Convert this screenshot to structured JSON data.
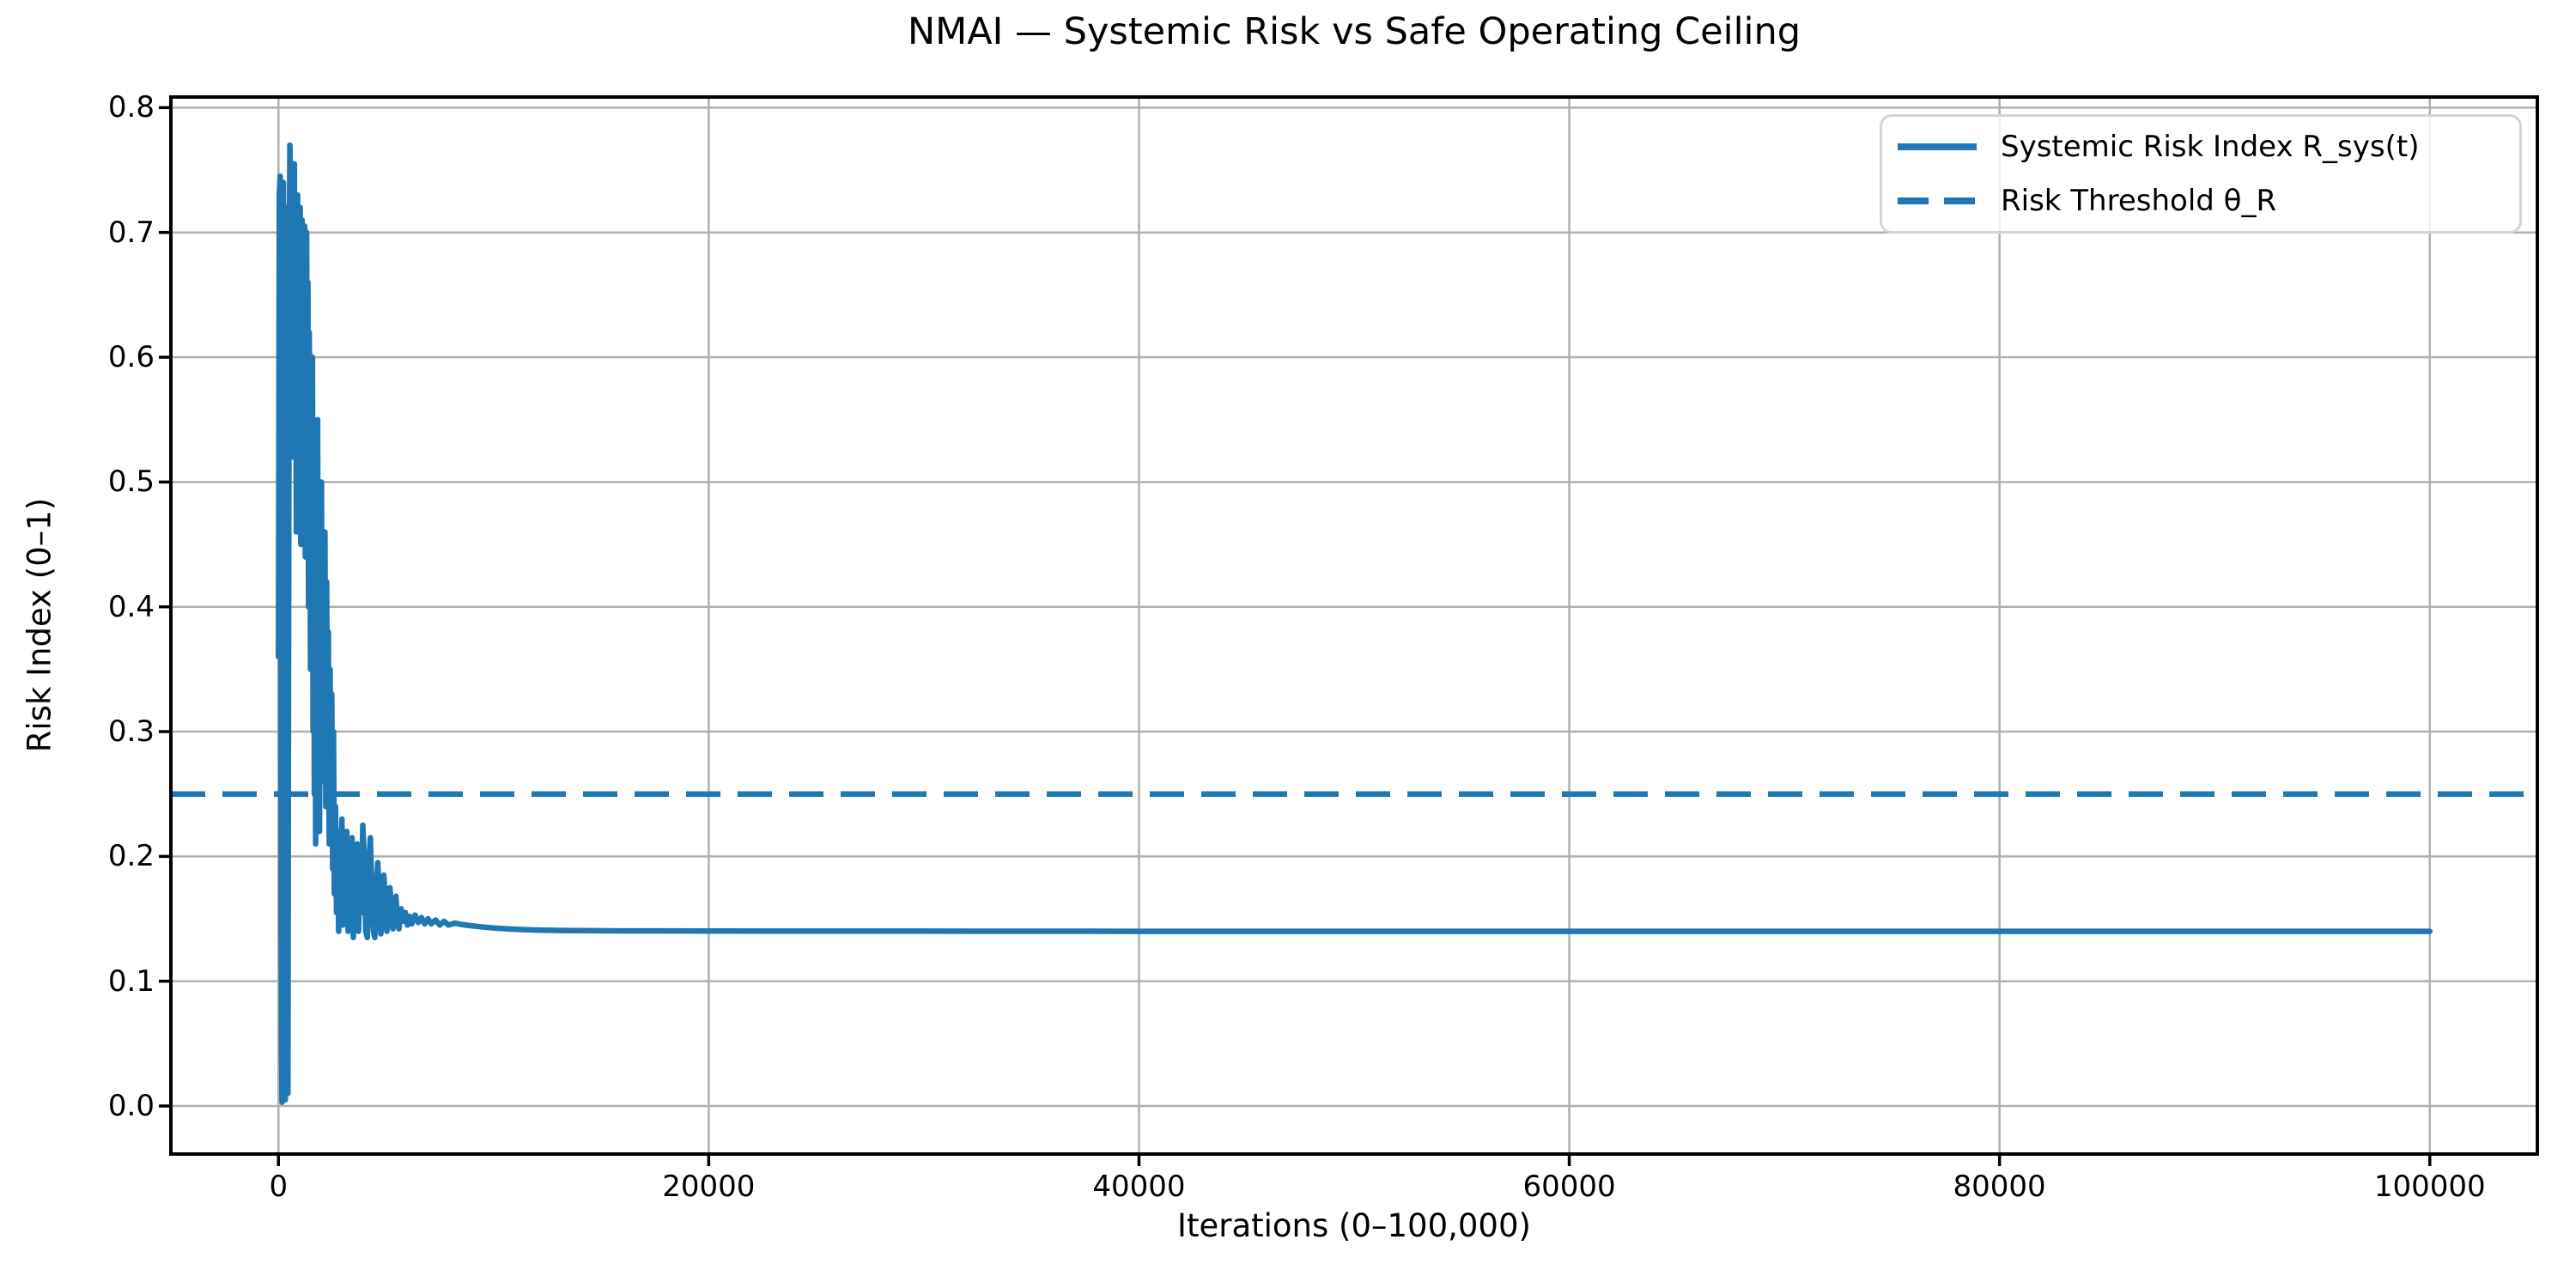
{
  "chart_data": {
    "type": "line",
    "title": "NMAI — Systemic Risk vs Safe Operating Ceiling",
    "xlabel": "Iterations (0–100,000)",
    "ylabel": "Risk Index (0–1)",
    "xlim": [
      -5000,
      105000
    ],
    "ylim": [
      -0.0385,
      0.8085
    ],
    "xticks": [
      0,
      20000,
      40000,
      60000,
      80000,
      100000
    ],
    "yticks": [
      0.0,
      0.1,
      0.2,
      0.3,
      0.4,
      0.5,
      0.6,
      0.7,
      0.8
    ],
    "grid": true,
    "legend_position": "upper right",
    "colors": {
      "line": "#1f77b4",
      "grid": "#b0b0b0",
      "spine": "#000000",
      "text": "#000000",
      "legend_border": "#d5d5d5"
    },
    "series": [
      {
        "name": "Systemic Risk Index R_sys(t)",
        "style": "solid",
        "points": [
          [
            0,
            0.36
          ],
          [
            40,
            0.73
          ],
          [
            80,
            0.745
          ],
          [
            110,
            0.36
          ],
          [
            140,
            0.05
          ],
          [
            170,
            0.003
          ],
          [
            200,
            0.55
          ],
          [
            230,
            0.74
          ],
          [
            260,
            0.62
          ],
          [
            290,
            0.3
          ],
          [
            320,
            0.005
          ],
          [
            350,
            0.48
          ],
          [
            380,
            0.72
          ],
          [
            410,
            0.55
          ],
          [
            440,
            0.01
          ],
          [
            470,
            0.35
          ],
          [
            500,
            0.65
          ],
          [
            530,
            0.77
          ],
          [
            560,
            0.735
          ],
          [
            590,
            0.56
          ],
          [
            620,
            0.7
          ],
          [
            650,
            0.74
          ],
          [
            680,
            0.52
          ],
          [
            710,
            0.68
          ],
          [
            740,
            0.755
          ],
          [
            770,
            0.58
          ],
          [
            800,
            0.71
          ],
          [
            830,
            0.46
          ],
          [
            860,
            0.67
          ],
          [
            890,
            0.73
          ],
          [
            920,
            0.5
          ],
          [
            950,
            0.7
          ],
          [
            980,
            0.61
          ],
          [
            1010,
            0.72
          ],
          [
            1040,
            0.45
          ],
          [
            1070,
            0.66
          ],
          [
            1100,
            0.71
          ],
          [
            1130,
            0.48
          ],
          [
            1160,
            0.69
          ],
          [
            1190,
            0.55
          ],
          [
            1220,
            0.705
          ],
          [
            1250,
            0.44
          ],
          [
            1280,
            0.63
          ],
          [
            1310,
            0.7
          ],
          [
            1340,
            0.52
          ],
          [
            1370,
            0.66
          ],
          [
            1400,
            0.4
          ],
          [
            1430,
            0.62
          ],
          [
            1460,
            0.55
          ],
          [
            1490,
            0.35
          ],
          [
            1520,
            0.58
          ],
          [
            1550,
            0.42
          ],
          [
            1580,
            0.6
          ],
          [
            1610,
            0.3
          ],
          [
            1640,
            0.55
          ],
          [
            1670,
            0.25
          ],
          [
            1700,
            0.52
          ],
          [
            1730,
            0.21
          ],
          [
            1760,
            0.5
          ],
          [
            1790,
            0.35
          ],
          [
            1820,
            0.55
          ],
          [
            1850,
            0.28
          ],
          [
            1880,
            0.48
          ],
          [
            1910,
            0.22
          ],
          [
            1940,
            0.45
          ],
          [
            1970,
            0.3
          ],
          [
            2000,
            0.5
          ],
          [
            2040,
            0.26
          ],
          [
            2080,
            0.44
          ],
          [
            2120,
            0.32
          ],
          [
            2160,
            0.46
          ],
          [
            2200,
            0.24
          ],
          [
            2240,
            0.42
          ],
          [
            2280,
            0.28
          ],
          [
            2320,
            0.38
          ],
          [
            2360,
            0.21
          ],
          [
            2400,
            0.35
          ],
          [
            2440,
            0.25
          ],
          [
            2480,
            0.33
          ],
          [
            2520,
            0.19
          ],
          [
            2560,
            0.3
          ],
          [
            2600,
            0.17
          ],
          [
            2650,
            0.24
          ],
          [
            2700,
            0.155
          ],
          [
            2750,
            0.22
          ],
          [
            2800,
            0.14
          ],
          [
            2850,
            0.215
          ],
          [
            2900,
            0.16
          ],
          [
            2950,
            0.23
          ],
          [
            3000,
            0.145
          ],
          [
            3060,
            0.21
          ],
          [
            3120,
            0.155
          ],
          [
            3180,
            0.22
          ],
          [
            3240,
            0.14
          ],
          [
            3300,
            0.2
          ],
          [
            3360,
            0.15
          ],
          [
            3420,
            0.215
          ],
          [
            3480,
            0.135
          ],
          [
            3540,
            0.19
          ],
          [
            3600,
            0.155
          ],
          [
            3660,
            0.21
          ],
          [
            3720,
            0.14
          ],
          [
            3780,
            0.18
          ],
          [
            3850,
            0.155
          ],
          [
            3920,
            0.225
          ],
          [
            3990,
            0.2
          ],
          [
            4060,
            0.14
          ],
          [
            4130,
            0.135
          ],
          [
            4200,
            0.19
          ],
          [
            4270,
            0.215
          ],
          [
            4340,
            0.175
          ],
          [
            4410,
            0.14
          ],
          [
            4480,
            0.135
          ],
          [
            4550,
            0.175
          ],
          [
            4620,
            0.195
          ],
          [
            4690,
            0.165
          ],
          [
            4760,
            0.138
          ],
          [
            4830,
            0.158
          ],
          [
            4900,
            0.185
          ],
          [
            4970,
            0.162
          ],
          [
            5040,
            0.14
          ],
          [
            5110,
            0.152
          ],
          [
            5180,
            0.175
          ],
          [
            5250,
            0.158
          ],
          [
            5320,
            0.142
          ],
          [
            5390,
            0.155
          ],
          [
            5460,
            0.168
          ],
          [
            5530,
            0.15
          ],
          [
            5600,
            0.142
          ],
          [
            5700,
            0.158
          ],
          [
            5800,
            0.148
          ],
          [
            5900,
            0.155
          ],
          [
            6000,
            0.145
          ],
          [
            6100,
            0.152
          ],
          [
            6200,
            0.146
          ],
          [
            6350,
            0.153
          ],
          [
            6500,
            0.147
          ],
          [
            6650,
            0.151
          ],
          [
            6800,
            0.146
          ],
          [
            6950,
            0.15
          ],
          [
            7100,
            0.146
          ],
          [
            7300,
            0.149
          ],
          [
            7500,
            0.145
          ],
          [
            7700,
            0.148
          ],
          [
            7900,
            0.145
          ],
          [
            8200,
            0.1465
          ],
          [
            8500,
            0.1455
          ],
          [
            8800,
            0.1448
          ],
          [
            9200,
            0.144
          ],
          [
            9600,
            0.1433
          ],
          [
            10000,
            0.1427
          ],
          [
            10500,
            0.1421
          ],
          [
            11000,
            0.1416
          ],
          [
            11500,
            0.1412
          ],
          [
            12000,
            0.141
          ],
          [
            13000,
            0.1407
          ],
          [
            14000,
            0.1405
          ],
          [
            16000,
            0.1403
          ],
          [
            20000,
            0.1402
          ],
          [
            25000,
            0.1401
          ],
          [
            30000,
            0.1401
          ],
          [
            40000,
            0.14
          ],
          [
            50000,
            0.14
          ],
          [
            60000,
            0.14
          ],
          [
            70000,
            0.14
          ],
          [
            80000,
            0.14
          ],
          [
            90000,
            0.14
          ],
          [
            100000,
            0.14
          ]
        ]
      },
      {
        "name": "Risk Threshold θ_R",
        "style": "dashed",
        "hline": 0.25
      }
    ]
  }
}
